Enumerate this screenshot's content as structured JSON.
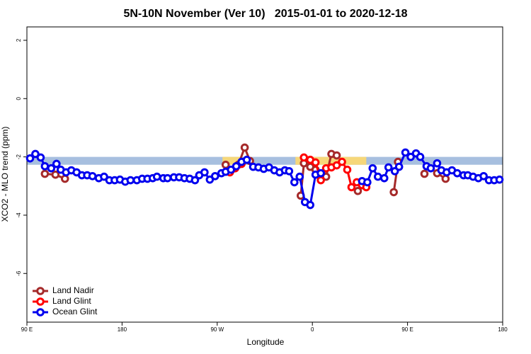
{
  "chart_data": {
    "type": "line",
    "title": "5N-10N November (Ver 10)   2015-01-01 to 2020-12-18",
    "x_label": "Longitude",
    "y_label": "XCO2 - MLO trend (ppm)",
    "xlim": [
      90,
      540
    ],
    "ylim": [
      -7.67,
      2.46
    ],
    "xticks": [
      {
        "value": 90,
        "label": "90 E"
      },
      180,
      {
        "value": 270,
        "label": "90 W"
      },
      {
        "value": 360,
        "label": "0"
      },
      {
        "value": 450,
        "label": "90 E"
      },
      {
        "value": 540,
        "label": "180"
      }
    ],
    "yticks": [
      -6,
      -4,
      -2,
      0,
      2
    ],
    "legend": "bottom-left",
    "band": {
      "ylim": [
        -2.27,
        -2.0
      ],
      "color": "#a7bfdf"
    },
    "land_band": {
      "spans": [
        [
          275,
          292
        ],
        [
          344,
          411
        ]
      ],
      "color": "#f6d77a"
    },
    "series": [
      {
        "name": "Land Nadir",
        "color": "#a52a2a",
        "x": [
          107,
          117,
          126,
          null,
          278,
          283,
          290,
          296,
          301,
          null,
          349,
          352,
          358,
          363,
          368,
          373,
          378,
          383,
          null,
          403,
          null,
          437,
          441,
          null,
          466,
          null,
          478,
          486
        ],
        "values": [
          -2.58,
          -2.61,
          -2.75,
          null,
          -2.27,
          -2.46,
          -2.27,
          -1.68,
          -2.14,
          null,
          -3.33,
          -2.22,
          -2.34,
          -2.44,
          -2.58,
          -2.68,
          -1.9,
          -1.95,
          null,
          -3.17,
          null,
          -3.21,
          -2.17,
          null,
          -2.58,
          null,
          -2.56,
          -2.75
        ]
      },
      {
        "name": "Land Glint",
        "color": "#ff0000",
        "x": [
          282,
          287,
          293,
          null,
          352,
          358,
          363,
          368,
          373,
          378,
          383,
          388,
          393,
          397,
          402,
          407,
          411
        ],
        "values": [
          -2.53,
          -2.39,
          -2.24,
          null,
          -2.02,
          -2.1,
          -2.19,
          -2.8,
          -2.39,
          -2.36,
          -2.29,
          -2.17,
          -2.44,
          -3.04,
          -2.87,
          -2.97,
          -3.04
        ]
      },
      {
        "name": "Ocean Glint",
        "color": "#0000ee",
        "x": [
          93,
          98,
          103,
          107,
          113,
          118,
          122,
          127,
          132,
          137,
          142,
          147,
          152,
          158,
          163,
          168,
          173,
          178,
          183,
          188,
          194,
          199,
          204,
          209,
          213,
          219,
          223,
          229,
          234,
          239,
          244,
          249,
          253,
          258,
          263,
          268,
          274,
          278,
          283,
          288,
          293,
          298,
          304,
          309,
          314,
          319,
          324,
          329,
          334,
          338,
          343,
          348,
          353,
          358,
          363,
          368,
          null,
          407,
          412,
          417,
          422,
          428,
          432,
          438,
          442,
          448,
          453,
          458,
          462,
          468,
          472,
          478,
          482,
          487,
          492,
          497,
          503,
          507,
          512,
          517,
          522,
          527,
          532,
          537
        ],
        "values": [
          -2.05,
          -1.9,
          -2.02,
          -2.32,
          -2.39,
          -2.24,
          -2.44,
          -2.53,
          -2.46,
          -2.53,
          -2.63,
          -2.63,
          -2.66,
          -2.73,
          -2.68,
          -2.8,
          -2.8,
          -2.78,
          -2.85,
          -2.8,
          -2.8,
          -2.75,
          -2.75,
          -2.73,
          -2.68,
          -2.73,
          -2.73,
          -2.7,
          -2.7,
          -2.73,
          -2.75,
          -2.8,
          -2.63,
          -2.53,
          -2.78,
          -2.66,
          -2.56,
          -2.51,
          -2.44,
          -2.32,
          -2.17,
          -2.1,
          -2.34,
          -2.36,
          -2.41,
          -2.36,
          -2.46,
          -2.53,
          -2.46,
          -2.49,
          -2.87,
          -2.68,
          -3.55,
          -3.65,
          -2.61,
          -2.56,
          null,
          -2.83,
          -2.87,
          -2.39,
          -2.68,
          -2.73,
          -2.36,
          -2.49,
          -2.34,
          -1.85,
          -2.0,
          -1.88,
          -2.0,
          -2.32,
          -2.39,
          -2.22,
          -2.46,
          -2.53,
          -2.46,
          -2.56,
          -2.63,
          -2.63,
          -2.68,
          -2.73,
          -2.66,
          -2.8,
          -2.8,
          -2.78
        ]
      }
    ]
  }
}
